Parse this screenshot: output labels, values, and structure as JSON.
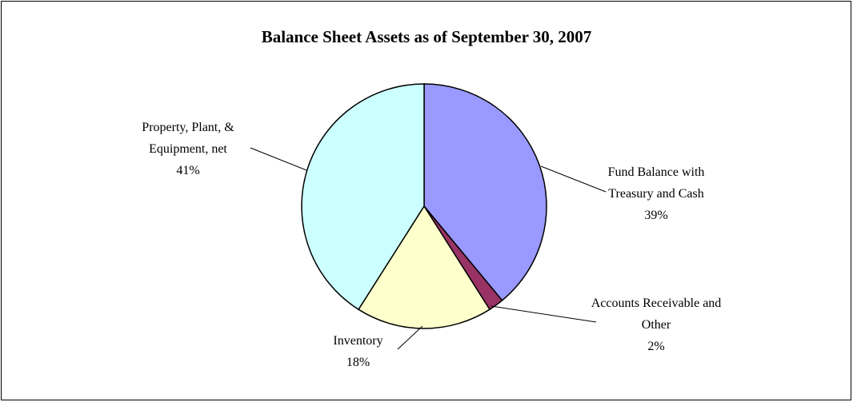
{
  "chart_data": {
    "type": "pie",
    "title": "Balance Sheet Assets as of September 30, 2007",
    "categories": [
      "Fund Balance with Treasury and Cash",
      "Accounts Receivable and Other",
      "Inventory",
      "Property, Plant, & Equipment, net"
    ],
    "values": [
      39,
      2,
      18,
      41
    ],
    "value_labels": [
      "39%",
      "2%",
      "18%",
      "41%"
    ],
    "colors": [
      "#9999ff",
      "#993366",
      "#ffffcc",
      "#ccffff"
    ]
  }
}
